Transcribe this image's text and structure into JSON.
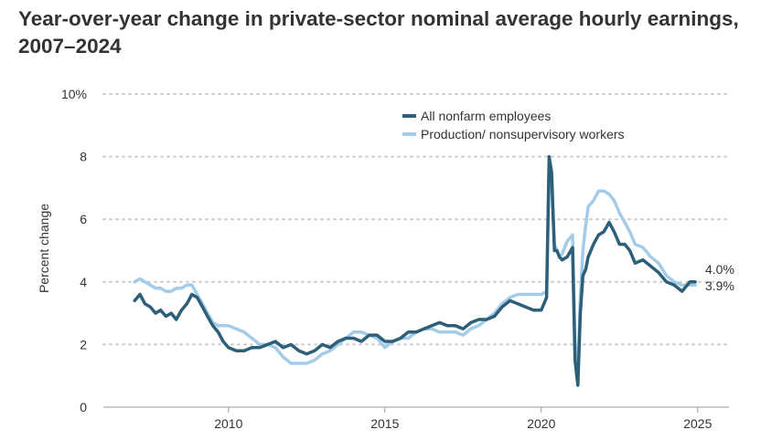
{
  "title": "Year-over-year change in private-sector nominal average hourly earnings, 2007–2024",
  "colors": {
    "series1": "#2d5f78",
    "series2": "#a4cbe8",
    "grid": "#cccccc",
    "axis": "#999999",
    "text": "#333333"
  },
  "chart_data": {
    "type": "line",
    "title": "Year-over-year change in private-sector nominal average hourly earnings, 2007–2024",
    "xlabel": "",
    "ylabel": "Percent change",
    "xlim": [
      2006.0,
      2026.0
    ],
    "ylim": [
      0,
      10
    ],
    "yticks": [
      {
        "value": 0,
        "label": "0"
      },
      {
        "value": 2,
        "label": "2"
      },
      {
        "value": 4,
        "label": "4"
      },
      {
        "value": 6,
        "label": "6"
      },
      {
        "value": 8,
        "label": "8"
      },
      {
        "value": 10,
        "label": "10%"
      }
    ],
    "xticks": [
      {
        "value": 2010,
        "label": "2010"
      },
      {
        "value": 2015,
        "label": "2015"
      },
      {
        "value": 2020,
        "label": "2020"
      },
      {
        "value": 2025,
        "label": "2025"
      }
    ],
    "grid": "horizontal dotted",
    "legend_position": "top-right",
    "series": [
      {
        "name": "All nonfarm employees",
        "end_label": "4.0%",
        "x": [
          2007.0,
          2007.17,
          2007.33,
          2007.5,
          2007.67,
          2007.83,
          2008.0,
          2008.17,
          2008.33,
          2008.5,
          2008.67,
          2008.83,
          2009.0,
          2009.17,
          2009.33,
          2009.5,
          2009.67,
          2009.83,
          2010.0,
          2010.25,
          2010.5,
          2010.75,
          2011.0,
          2011.25,
          2011.5,
          2011.75,
          2012.0,
          2012.25,
          2012.5,
          2012.75,
          2013.0,
          2013.25,
          2013.5,
          2013.75,
          2014.0,
          2014.25,
          2014.5,
          2014.75,
          2015.0,
          2015.25,
          2015.5,
          2015.75,
          2016.0,
          2016.25,
          2016.5,
          2016.75,
          2017.0,
          2017.25,
          2017.5,
          2017.75,
          2018.0,
          2018.25,
          2018.5,
          2018.75,
          2019.0,
          2019.25,
          2019.5,
          2019.75,
          2020.0,
          2020.17,
          2020.25,
          2020.33,
          2020.42,
          2020.5,
          2020.58,
          2020.67,
          2020.83,
          2021.0,
          2021.08,
          2021.17,
          2021.25,
          2021.33,
          2021.42,
          2021.5,
          2021.67,
          2021.83,
          2022.0,
          2022.17,
          2022.33,
          2022.5,
          2022.67,
          2022.83,
          2023.0,
          2023.25,
          2023.5,
          2023.75,
          2024.0,
          2024.25,
          2024.5,
          2024.75,
          2024.92
        ],
        "values": [
          3.4,
          3.6,
          3.3,
          3.2,
          3.0,
          3.1,
          2.9,
          3.0,
          2.8,
          3.1,
          3.3,
          3.6,
          3.5,
          3.2,
          2.9,
          2.6,
          2.4,
          2.1,
          1.9,
          1.8,
          1.8,
          1.9,
          1.9,
          2.0,
          2.1,
          1.9,
          2.0,
          1.8,
          1.7,
          1.8,
          2.0,
          1.9,
          2.1,
          2.2,
          2.2,
          2.1,
          2.3,
          2.3,
          2.1,
          2.1,
          2.2,
          2.4,
          2.4,
          2.5,
          2.6,
          2.7,
          2.6,
          2.6,
          2.5,
          2.7,
          2.8,
          2.8,
          2.9,
          3.2,
          3.4,
          3.3,
          3.2,
          3.1,
          3.1,
          3.5,
          8.0,
          7.5,
          5.0,
          5.0,
          4.8,
          4.7,
          4.8,
          5.1,
          1.5,
          0.7,
          3.0,
          4.2,
          4.4,
          4.8,
          5.2,
          5.5,
          5.6,
          5.9,
          5.6,
          5.2,
          5.2,
          5.0,
          4.6,
          4.7,
          4.5,
          4.3,
          4.0,
          3.9,
          3.7,
          4.0,
          4.0
        ]
      },
      {
        "name": "Production/ nonsupervisory workers",
        "end_label": "3.9%",
        "x": [
          2007.0,
          2007.17,
          2007.33,
          2007.5,
          2007.67,
          2007.83,
          2008.0,
          2008.17,
          2008.33,
          2008.5,
          2008.67,
          2008.83,
          2009.0,
          2009.17,
          2009.33,
          2009.5,
          2009.67,
          2009.83,
          2010.0,
          2010.25,
          2010.5,
          2010.75,
          2011.0,
          2011.25,
          2011.5,
          2011.75,
          2012.0,
          2012.25,
          2012.5,
          2012.75,
          2013.0,
          2013.25,
          2013.5,
          2013.75,
          2014.0,
          2014.25,
          2014.5,
          2014.75,
          2015.0,
          2015.25,
          2015.5,
          2015.75,
          2016.0,
          2016.25,
          2016.5,
          2016.75,
          2017.0,
          2017.25,
          2017.5,
          2017.75,
          2018.0,
          2018.25,
          2018.5,
          2018.75,
          2019.0,
          2019.25,
          2019.5,
          2019.75,
          2020.0,
          2020.17,
          2020.25,
          2020.33,
          2020.42,
          2020.5,
          2020.58,
          2020.67,
          2020.83,
          2021.0,
          2021.08,
          2021.17,
          2021.25,
          2021.33,
          2021.42,
          2021.5,
          2021.67,
          2021.83,
          2022.0,
          2022.17,
          2022.33,
          2022.5,
          2022.67,
          2022.83,
          2023.0,
          2023.25,
          2023.5,
          2023.75,
          2024.0,
          2024.25,
          2024.5,
          2024.75,
          2024.92
        ],
        "values": [
          4.0,
          4.1,
          4.0,
          3.9,
          3.8,
          3.8,
          3.7,
          3.7,
          3.8,
          3.8,
          3.9,
          3.9,
          3.6,
          3.3,
          3.0,
          2.7,
          2.6,
          2.6,
          2.6,
          2.5,
          2.4,
          2.2,
          2.0,
          2.0,
          1.9,
          1.6,
          1.4,
          1.4,
          1.4,
          1.5,
          1.7,
          1.8,
          2.0,
          2.2,
          2.4,
          2.4,
          2.3,
          2.2,
          1.9,
          2.1,
          2.2,
          2.2,
          2.4,
          2.5,
          2.5,
          2.4,
          2.4,
          2.4,
          2.3,
          2.5,
          2.6,
          2.8,
          3.0,
          3.3,
          3.5,
          3.6,
          3.6,
          3.6,
          3.6,
          3.7,
          7.8,
          7.0,
          5.2,
          5.0,
          4.8,
          4.9,
          5.3,
          5.5,
          2.0,
          1.2,
          3.5,
          5.0,
          5.8,
          6.4,
          6.6,
          6.9,
          6.9,
          6.8,
          6.6,
          6.2,
          5.9,
          5.6,
          5.2,
          5.1,
          4.8,
          4.6,
          4.2,
          4.0,
          3.9,
          3.9,
          3.9
        ]
      }
    ]
  }
}
